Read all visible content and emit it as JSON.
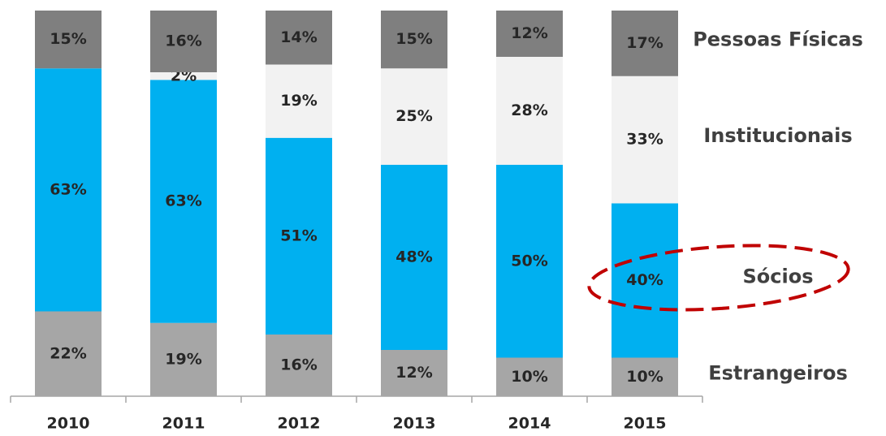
{
  "chart_data": {
    "type": "stacked_bar",
    "categories": [
      "2010",
      "2011",
      "2012",
      "2013",
      "2014",
      "2015"
    ],
    "series": [
      {
        "name": "Estrangeiros",
        "color": "#a6a6a6",
        "values": [
          22,
          19,
          16,
          12,
          10,
          10
        ],
        "value_labels": [
          "22%",
          "19%",
          "16%",
          "12%",
          "10%",
          "10%"
        ]
      },
      {
        "name": "Sócios",
        "color": "#00b0f0",
        "values": [
          63,
          63,
          51,
          48,
          50,
          40
        ],
        "value_labels": [
          "63%",
          "63%",
          "51%",
          "48%",
          "50%",
          "40%"
        ]
      },
      {
        "name": "Institucionais",
        "color": "#f2f2f2",
        "values": [
          null,
          2,
          19,
          25,
          28,
          33
        ],
        "value_labels": [
          null,
          "2%",
          "19%",
          "25%",
          "28%",
          "33%"
        ]
      },
      {
        "name": "Pessoas Físicas",
        "color": "#7f7f7f",
        "values": [
          15,
          16,
          14,
          15,
          12,
          17
        ],
        "value_labels": [
          "15%",
          "16%",
          "14%",
          "15%",
          "12%",
          "17%"
        ]
      }
    ]
  }
}
